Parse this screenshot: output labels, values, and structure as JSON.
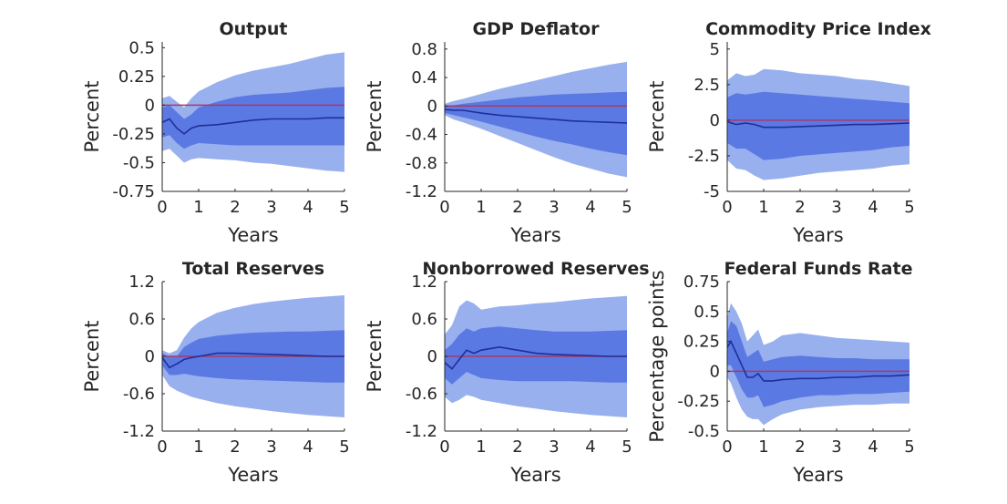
{
  "colors": {
    "outer_band": "#99b0ee",
    "inner_band": "#5b79e2",
    "median": "#1f2f99",
    "zero_line": "#a83a66",
    "axis": "#262626"
  },
  "chart_data": [
    {
      "type": "area",
      "title": "Output",
      "xlabel": "Years",
      "ylabel": "Percent",
      "xlim": [
        0,
        5
      ],
      "ylim": [
        -0.75,
        0.55
      ],
      "xticks": [
        0,
        1,
        2,
        3,
        4,
        5
      ],
      "xtick_labels": [
        "0",
        "1",
        "2",
        "3",
        "4",
        "5"
      ],
      "yticks": [
        0.5,
        0.25,
        0,
        -0.25,
        -0.5,
        -0.75
      ],
      "ytick_labels": [
        "0.5",
        "0.25",
        "0",
        "-0.25",
        "-0.5",
        "-0.75"
      ],
      "x": [
        0,
        0.2,
        0.4,
        0.6,
        0.8,
        1,
        1.5,
        2,
        2.5,
        3,
        3.5,
        4,
        4.5,
        5
      ],
      "series": [
        {
          "band": "outer_upper",
          "values": [
            0.06,
            0.08,
            0.03,
            -0.02,
            0.06,
            0.12,
            0.2,
            0.26,
            0.3,
            0.33,
            0.36,
            0.4,
            0.44,
            0.46
          ]
        },
        {
          "band": "inner_upper",
          "values": [
            -0.02,
            0,
            -0.06,
            -0.12,
            -0.08,
            -0.02,
            0.03,
            0.07,
            0.09,
            0.1,
            0.11,
            0.13,
            0.15,
            0.16
          ]
        },
        {
          "band": "median",
          "values": [
            -0.15,
            -0.12,
            -0.2,
            -0.25,
            -0.2,
            -0.18,
            -0.17,
            -0.15,
            -0.13,
            -0.12,
            -0.12,
            -0.12,
            -0.11,
            -0.11
          ]
        },
        {
          "band": "inner_lower",
          "values": [
            -0.28,
            -0.26,
            -0.33,
            -0.38,
            -0.35,
            -0.33,
            -0.34,
            -0.35,
            -0.35,
            -0.35,
            -0.35,
            -0.35,
            -0.35,
            -0.35
          ]
        },
        {
          "band": "outer_lower",
          "values": [
            -0.4,
            -0.38,
            -0.44,
            -0.5,
            -0.47,
            -0.46,
            -0.47,
            -0.48,
            -0.5,
            -0.51,
            -0.53,
            -0.55,
            -0.57,
            -0.58
          ]
        }
      ]
    },
    {
      "type": "area",
      "title": "GDP Deflator",
      "xlabel": "Years",
      "ylabel": "Percent",
      "xlim": [
        0,
        5
      ],
      "ylim": [
        -1.2,
        0.9
      ],
      "xticks": [
        0,
        1,
        2,
        3,
        4,
        5
      ],
      "xtick_labels": [
        "0",
        "1",
        "2",
        "3",
        "4",
        "5"
      ],
      "yticks": [
        0.8,
        0.4,
        0,
        -0.4,
        -0.8,
        -1.2
      ],
      "ytick_labels": [
        "0.8",
        "0.4",
        "0",
        "-0.4",
        "-0.8",
        "-1.2"
      ],
      "x": [
        0,
        0.25,
        0.5,
        1,
        1.5,
        2,
        2.5,
        3,
        3.5,
        4,
        4.5,
        5
      ],
      "series": [
        {
          "band": "outer_upper",
          "values": [
            0.03,
            0.07,
            0.1,
            0.17,
            0.24,
            0.3,
            0.36,
            0.42,
            0.48,
            0.53,
            0.58,
            0.62
          ]
        },
        {
          "band": "inner_upper",
          "values": [
            -0.01,
            0.01,
            0.03,
            0.06,
            0.09,
            0.12,
            0.14,
            0.16,
            0.17,
            0.18,
            0.19,
            0.2
          ]
        },
        {
          "band": "median",
          "values": [
            -0.05,
            -0.06,
            -0.06,
            -0.1,
            -0.13,
            -0.15,
            -0.17,
            -0.19,
            -0.21,
            -0.22,
            -0.23,
            -0.24
          ]
        },
        {
          "band": "inner_lower",
          "values": [
            -0.1,
            -0.13,
            -0.16,
            -0.22,
            -0.29,
            -0.36,
            -0.43,
            -0.49,
            -0.54,
            -0.6,
            -0.65,
            -0.69
          ]
        },
        {
          "band": "outer_lower",
          "values": [
            -0.13,
            -0.19,
            -0.23,
            -0.32,
            -0.42,
            -0.52,
            -0.62,
            -0.72,
            -0.81,
            -0.88,
            -0.95,
            -1.0
          ]
        }
      ]
    },
    {
      "type": "area",
      "title": "Commodity Price Index",
      "xlabel": "Years",
      "ylabel": "Percent",
      "xlim": [
        0,
        5
      ],
      "ylim": [
        -5,
        5.5
      ],
      "xticks": [
        0,
        1,
        2,
        3,
        4,
        5
      ],
      "xtick_labels": [
        "0",
        "1",
        "2",
        "3",
        "4",
        "5"
      ],
      "yticks": [
        5,
        2.5,
        0,
        -2.5,
        -5
      ],
      "ytick_labels": [
        "5",
        "2.5",
        "0",
        "-2.5",
        "-5"
      ],
      "x": [
        0,
        0.25,
        0.5,
        0.75,
        1,
        1.5,
        2,
        2.5,
        3,
        3.5,
        4,
        4.5,
        5
      ],
      "series": [
        {
          "band": "outer_upper",
          "values": [
            2.8,
            3.3,
            3.1,
            3.2,
            3.6,
            3.5,
            3.3,
            3.2,
            3.1,
            2.9,
            2.8,
            2.6,
            2.4
          ]
        },
        {
          "band": "inner_upper",
          "values": [
            1.6,
            1.9,
            1.8,
            1.9,
            2.0,
            1.9,
            1.8,
            1.7,
            1.6,
            1.5,
            1.4,
            1.3,
            1.2
          ]
        },
        {
          "band": "median",
          "values": [
            -0.1,
            -0.3,
            -0.2,
            -0.3,
            -0.5,
            -0.5,
            -0.45,
            -0.4,
            -0.35,
            -0.3,
            -0.3,
            -0.25,
            -0.2
          ]
        },
        {
          "band": "inner_lower",
          "values": [
            -1.6,
            -2.0,
            -2.0,
            -2.4,
            -2.8,
            -2.7,
            -2.5,
            -2.4,
            -2.3,
            -2.2,
            -2.1,
            -1.9,
            -1.8
          ]
        },
        {
          "band": "outer_lower",
          "values": [
            -2.8,
            -3.4,
            -3.5,
            -3.9,
            -4.2,
            -4.1,
            -3.9,
            -3.7,
            -3.6,
            -3.5,
            -3.4,
            -3.2,
            -3.1
          ]
        }
      ]
    },
    {
      "type": "area",
      "title": "Total Reserves",
      "xlabel": "Years",
      "ylabel": "Percent",
      "xlim": [
        0,
        5
      ],
      "ylim": [
        -1.2,
        1.2
      ],
      "xticks": [
        0,
        1,
        2,
        3,
        4,
        5
      ],
      "xtick_labels": [
        "0",
        "1",
        "2",
        "3",
        "4",
        "5"
      ],
      "yticks": [
        1.2,
        0.6,
        0,
        -0.6,
        -1.2
      ],
      "ytick_labels": [
        "1.2",
        "0.6",
        "0",
        "-0.6",
        "-1.2"
      ],
      "x": [
        0,
        0.2,
        0.4,
        0.6,
        0.8,
        1,
        1.5,
        2,
        2.5,
        3,
        3.5,
        4,
        4.5,
        5
      ],
      "series": [
        {
          "band": "outer_upper",
          "values": [
            0.1,
            0.05,
            0.1,
            0.3,
            0.45,
            0.55,
            0.7,
            0.78,
            0.84,
            0.88,
            0.91,
            0.94,
            0.96,
            0.98
          ]
        },
        {
          "band": "inner_upper",
          "values": [
            0.05,
            0.0,
            0.0,
            0.15,
            0.22,
            0.28,
            0.33,
            0.36,
            0.38,
            0.39,
            0.4,
            0.4,
            0.41,
            0.42
          ]
        },
        {
          "band": "median",
          "values": [
            -0.02,
            -0.18,
            -0.12,
            -0.05,
            -0.02,
            0.0,
            0.05,
            0.05,
            0.04,
            0.03,
            0.02,
            0.01,
            0.0,
            0.0
          ]
        },
        {
          "band": "inner_lower",
          "values": [
            -0.15,
            -0.3,
            -0.3,
            -0.28,
            -0.3,
            -0.32,
            -0.35,
            -0.37,
            -0.38,
            -0.39,
            -0.4,
            -0.41,
            -0.42,
            -0.42
          ]
        },
        {
          "band": "outer_lower",
          "values": [
            -0.3,
            -0.48,
            -0.55,
            -0.6,
            -0.65,
            -0.68,
            -0.75,
            -0.8,
            -0.84,
            -0.88,
            -0.91,
            -0.94,
            -0.96,
            -0.98
          ]
        }
      ]
    },
    {
      "type": "area",
      "title": "Nonborrowed Reserves",
      "xlabel": "Years",
      "ylabel": "Percent",
      "xlim": [
        0,
        5
      ],
      "ylim": [
        -1.2,
        1.2
      ],
      "xticks": [
        0,
        1,
        2,
        3,
        4,
        5
      ],
      "xtick_labels": [
        "0",
        "1",
        "2",
        "3",
        "4",
        "5"
      ],
      "yticks": [
        1.2,
        0.6,
        0,
        -0.6,
        -1.2
      ],
      "ytick_labels": [
        "1.2",
        "0.6",
        "0",
        "-0.6",
        "-1.2"
      ],
      "x": [
        0,
        0.2,
        0.4,
        0.6,
        0.8,
        1,
        1.5,
        2,
        2.5,
        3,
        3.5,
        4,
        4.5,
        5
      ],
      "series": [
        {
          "band": "outer_upper",
          "values": [
            0.35,
            0.5,
            0.8,
            0.9,
            0.85,
            0.75,
            0.8,
            0.82,
            0.85,
            0.87,
            0.9,
            0.93,
            0.95,
            0.97
          ]
        },
        {
          "band": "inner_upper",
          "values": [
            0.1,
            0.2,
            0.35,
            0.45,
            0.4,
            0.45,
            0.48,
            0.45,
            0.42,
            0.4,
            0.4,
            0.4,
            0.41,
            0.42
          ]
        },
        {
          "band": "median",
          "values": [
            -0.1,
            -0.2,
            -0.05,
            0.1,
            0.05,
            0.1,
            0.15,
            0.1,
            0.05,
            0.03,
            0.02,
            0.01,
            0.0,
            0.0
          ]
        },
        {
          "band": "inner_lower",
          "values": [
            -0.35,
            -0.45,
            -0.35,
            -0.25,
            -0.3,
            -0.35,
            -0.38,
            -0.4,
            -0.4,
            -0.4,
            -0.4,
            -0.41,
            -0.42,
            -0.42
          ]
        },
        {
          "band": "outer_lower",
          "values": [
            -0.65,
            -0.75,
            -0.7,
            -0.62,
            -0.65,
            -0.7,
            -0.75,
            -0.8,
            -0.84,
            -0.88,
            -0.91,
            -0.94,
            -0.96,
            -0.98
          ]
        }
      ]
    },
    {
      "type": "area",
      "title": "Federal Funds Rate",
      "xlabel": "Years",
      "ylabel": "Percentage points",
      "xlim": [
        0,
        5
      ],
      "ylim": [
        -0.5,
        0.75
      ],
      "xticks": [
        0,
        1,
        2,
        3,
        4,
        5
      ],
      "xtick_labels": [
        "0",
        "1",
        "2",
        "3",
        "4",
        "5"
      ],
      "yticks": [
        0.75,
        0.5,
        0.25,
        0,
        -0.25,
        -0.5
      ],
      "ytick_labels": [
        "0.75",
        "0.5",
        "0.25",
        "0",
        "-0.25",
        "-0.5"
      ],
      "x": [
        0,
        0.1,
        0.25,
        0.4,
        0.55,
        0.7,
        0.85,
        1,
        1.25,
        1.5,
        2,
        2.5,
        3,
        3.5,
        4,
        4.5,
        5
      ],
      "series": [
        {
          "band": "outer_upper",
          "values": [
            0.45,
            0.57,
            0.5,
            0.4,
            0.25,
            0.3,
            0.35,
            0.22,
            0.25,
            0.3,
            0.32,
            0.3,
            0.28,
            0.27,
            0.26,
            0.25,
            0.24
          ]
        },
        {
          "band": "inner_upper",
          "values": [
            0.32,
            0.42,
            0.38,
            0.25,
            0.12,
            0.15,
            0.18,
            0.08,
            0.1,
            0.12,
            0.13,
            0.12,
            0.11,
            0.11,
            0.1,
            0.1,
            0.1
          ]
        },
        {
          "band": "median",
          "values": [
            0.2,
            0.25,
            0.15,
            0.05,
            -0.05,
            -0.05,
            -0.02,
            -0.08,
            -0.08,
            -0.07,
            -0.06,
            -0.06,
            -0.05,
            -0.05,
            -0.04,
            -0.04,
            -0.03
          ]
        },
        {
          "band": "inner_lower",
          "values": [
            0.05,
            0.05,
            -0.05,
            -0.15,
            -0.22,
            -0.22,
            -0.2,
            -0.3,
            -0.28,
            -0.25,
            -0.22,
            -0.2,
            -0.2,
            -0.19,
            -0.19,
            -0.18,
            -0.17
          ]
        },
        {
          "band": "outer_lower",
          "values": [
            -0.05,
            -0.1,
            -0.22,
            -0.32,
            -0.38,
            -0.4,
            -0.4,
            -0.45,
            -0.4,
            -0.36,
            -0.32,
            -0.3,
            -0.29,
            -0.28,
            -0.28,
            -0.27,
            -0.27
          ]
        }
      ]
    }
  ]
}
